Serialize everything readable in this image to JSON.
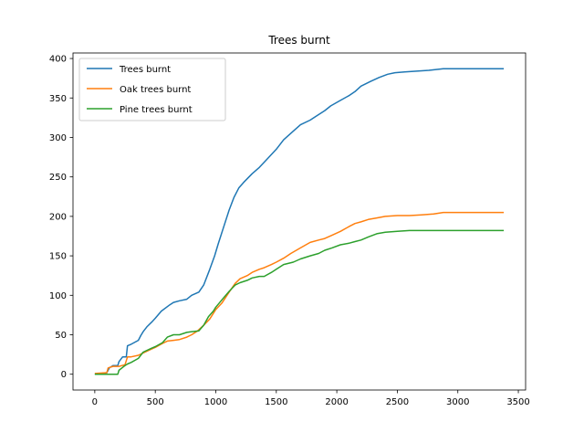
{
  "chart_data": {
    "type": "line",
    "title": "Trees burnt",
    "xlabel": "",
    "ylabel": "",
    "xlim": [
      -180,
      3560
    ],
    "ylim": [
      -20,
      407
    ],
    "xticks": [
      0,
      500,
      1000,
      1500,
      2000,
      2500,
      3000,
      3500
    ],
    "yticks": [
      0,
      50,
      100,
      150,
      200,
      250,
      300,
      350,
      400
    ],
    "grid": false,
    "legend_position": "top-left",
    "series": [
      {
        "name": "Trees burnt",
        "color": "#1f77b4",
        "points": [
          [
            0,
            0
          ],
          [
            100,
            2
          ],
          [
            120,
            8
          ],
          [
            150,
            11
          ],
          [
            190,
            11
          ],
          [
            200,
            16
          ],
          [
            230,
            22
          ],
          [
            260,
            22
          ],
          [
            270,
            36
          ],
          [
            300,
            38
          ],
          [
            360,
            43
          ],
          [
            380,
            49
          ],
          [
            400,
            54
          ],
          [
            430,
            60
          ],
          [
            470,
            66
          ],
          [
            500,
            71
          ],
          [
            550,
            80
          ],
          [
            620,
            88
          ],
          [
            650,
            91
          ],
          [
            700,
            93
          ],
          [
            760,
            95
          ],
          [
            800,
            100
          ],
          [
            860,
            104
          ],
          [
            900,
            113
          ],
          [
            950,
            133
          ],
          [
            990,
            150
          ],
          [
            1020,
            165
          ],
          [
            1060,
            184
          ],
          [
            1110,
            208
          ],
          [
            1150,
            224
          ],
          [
            1190,
            236
          ],
          [
            1230,
            243
          ],
          [
            1300,
            254
          ],
          [
            1360,
            262
          ],
          [
            1420,
            272
          ],
          [
            1500,
            285
          ],
          [
            1560,
            297
          ],
          [
            1640,
            308
          ],
          [
            1700,
            316
          ],
          [
            1780,
            322
          ],
          [
            1830,
            327
          ],
          [
            1900,
            334
          ],
          [
            1950,
            340
          ],
          [
            2030,
            347
          ],
          [
            2100,
            353
          ],
          [
            2150,
            358
          ],
          [
            2200,
            365
          ],
          [
            2280,
            371
          ],
          [
            2350,
            376
          ],
          [
            2420,
            380
          ],
          [
            2480,
            382
          ],
          [
            2560,
            383
          ],
          [
            2660,
            384
          ],
          [
            2760,
            385
          ],
          [
            2880,
            387
          ],
          [
            2990,
            387
          ],
          [
            3100,
            387
          ],
          [
            3200,
            387
          ],
          [
            3380,
            387
          ]
        ]
      },
      {
        "name": "Oak trees burnt",
        "color": "#ff7f0e",
        "points": [
          [
            0,
            1
          ],
          [
            100,
            2
          ],
          [
            110,
            8
          ],
          [
            150,
            10
          ],
          [
            190,
            10
          ],
          [
            200,
            10
          ],
          [
            250,
            12
          ],
          [
            270,
            22
          ],
          [
            300,
            22
          ],
          [
            360,
            24
          ],
          [
            400,
            27
          ],
          [
            470,
            32
          ],
          [
            500,
            34
          ],
          [
            560,
            39
          ],
          [
            600,
            42
          ],
          [
            650,
            43
          ],
          [
            700,
            44
          ],
          [
            760,
            47
          ],
          [
            800,
            50
          ],
          [
            850,
            55
          ],
          [
            900,
            62
          ],
          [
            950,
            70
          ],
          [
            1000,
            82
          ],
          [
            1050,
            90
          ],
          [
            1110,
            104
          ],
          [
            1160,
            115
          ],
          [
            1200,
            121
          ],
          [
            1260,
            125
          ],
          [
            1300,
            129
          ],
          [
            1360,
            133
          ],
          [
            1400,
            135
          ],
          [
            1460,
            139
          ],
          [
            1500,
            142
          ],
          [
            1560,
            147
          ],
          [
            1620,
            153
          ],
          [
            1700,
            160
          ],
          [
            1780,
            167
          ],
          [
            1850,
            170
          ],
          [
            1900,
            172
          ],
          [
            1960,
            176
          ],
          [
            2030,
            181
          ],
          [
            2100,
            187
          ],
          [
            2150,
            191
          ],
          [
            2200,
            193
          ],
          [
            2260,
            196
          ],
          [
            2330,
            198
          ],
          [
            2400,
            200
          ],
          [
            2500,
            201
          ],
          [
            2600,
            201
          ],
          [
            2700,
            202
          ],
          [
            2800,
            203
          ],
          [
            2880,
            205
          ],
          [
            3000,
            205
          ],
          [
            3200,
            205
          ],
          [
            3380,
            205
          ]
        ]
      },
      {
        "name": "Pine trees burnt",
        "color": "#2ca02c",
        "points": [
          [
            0,
            0
          ],
          [
            100,
            0
          ],
          [
            190,
            0
          ],
          [
            200,
            5
          ],
          [
            250,
            11
          ],
          [
            270,
            13
          ],
          [
            300,
            15
          ],
          [
            360,
            20
          ],
          [
            400,
            28
          ],
          [
            470,
            33
          ],
          [
            500,
            35
          ],
          [
            560,
            40
          ],
          [
            600,
            47
          ],
          [
            650,
            50
          ],
          [
            700,
            50
          ],
          [
            760,
            53
          ],
          [
            800,
            54
          ],
          [
            860,
            55
          ],
          [
            900,
            62
          ],
          [
            940,
            73
          ],
          [
            980,
            80
          ],
          [
            1000,
            85
          ],
          [
            1060,
            96
          ],
          [
            1110,
            105
          ],
          [
            1160,
            113
          ],
          [
            1200,
            116
          ],
          [
            1260,
            119
          ],
          [
            1300,
            122
          ],
          [
            1360,
            124
          ],
          [
            1400,
            124
          ],
          [
            1460,
            129
          ],
          [
            1500,
            133
          ],
          [
            1560,
            139
          ],
          [
            1640,
            142
          ],
          [
            1700,
            146
          ],
          [
            1780,
            150
          ],
          [
            1850,
            153
          ],
          [
            1900,
            157
          ],
          [
            1960,
            160
          ],
          [
            2030,
            164
          ],
          [
            2100,
            166
          ],
          [
            2150,
            168
          ],
          [
            2200,
            170
          ],
          [
            2260,
            174
          ],
          [
            2330,
            178
          ],
          [
            2400,
            180
          ],
          [
            2500,
            181
          ],
          [
            2600,
            182
          ],
          [
            2700,
            182
          ],
          [
            2800,
            182
          ],
          [
            3000,
            182
          ],
          [
            3200,
            182
          ],
          [
            3380,
            182
          ]
        ]
      }
    ]
  }
}
